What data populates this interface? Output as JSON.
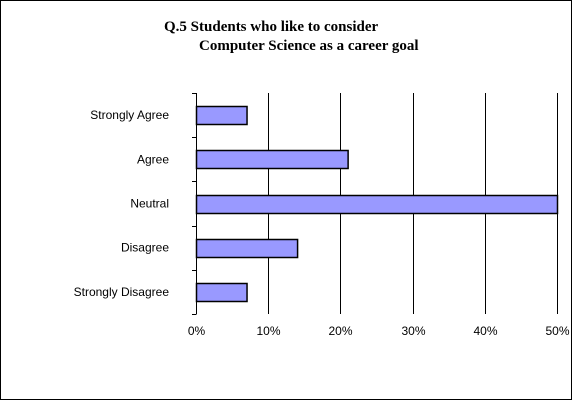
{
  "chart_data": {
    "type": "bar",
    "orientation": "horizontal",
    "title_lines": [
      "Q.5  Students who like to consider",
      "Computer Science as a career goal"
    ],
    "categories": [
      "Strongly Agree",
      "Agree",
      "Neutral",
      "Disagree",
      "Strongly Disagree"
    ],
    "values": [
      0.07,
      0.21,
      0.5,
      0.14,
      0.07
    ],
    "xlim": [
      0,
      0.5
    ],
    "x_ticks": [
      0,
      0.1,
      0.2,
      0.3,
      0.4,
      0.5
    ],
    "x_tick_labels": [
      "0%",
      "10%",
      "20%",
      "30%",
      "40%",
      "50%"
    ],
    "xlabel": "",
    "ylabel": "",
    "grid": "vertical",
    "legend": "none",
    "colors": {
      "bar_fill": "#9999FF",
      "bar_stroke": "#000000",
      "grid": "#000000"
    }
  }
}
